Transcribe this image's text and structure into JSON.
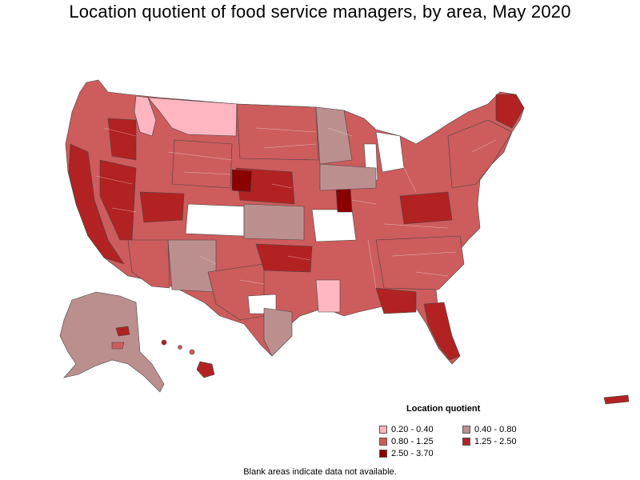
{
  "title": "Location quotient of food service managers, by area, May 2020",
  "legend": {
    "title": "Location quotient",
    "items": [
      {
        "label": "0.20 - 0.40",
        "color": "#ffb6c1"
      },
      {
        "label": "0.40 - 0.80",
        "color": "#bc8f8f"
      },
      {
        "label": "0.80 - 1.25",
        "color": "#cd5c5c"
      },
      {
        "label": "1.25 - 2.50",
        "color": "#b22222"
      },
      {
        "label": "2.50 - 3.70",
        "color": "#8b0000"
      }
    ]
  },
  "footnote": "Blank areas indicate data not available.",
  "colors": {
    "q1": "#ffb6c1",
    "q2": "#bc8f8f",
    "q3": "#cd5c5c",
    "q4": "#b22222",
    "q5": "#8b0000",
    "blank": "#ffffff",
    "border": "#444444"
  }
}
